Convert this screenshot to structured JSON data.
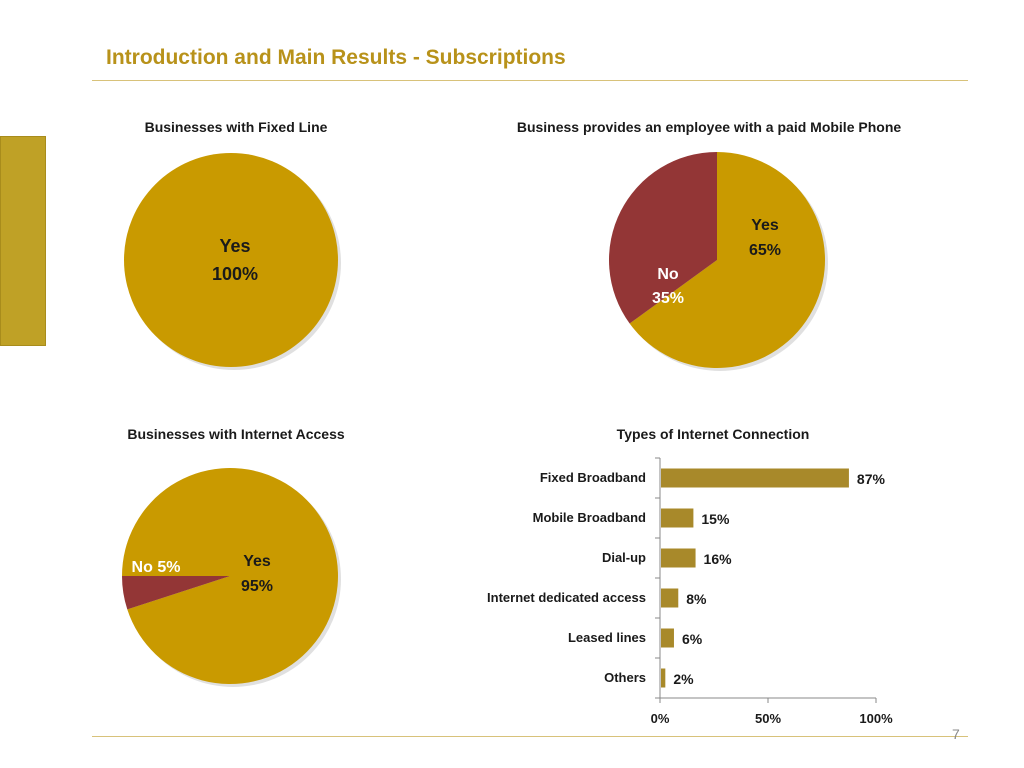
{
  "page": {
    "title": "Introduction and Main Results - Subscriptions",
    "page_number": "7"
  },
  "colors": {
    "title": "#B8921A",
    "pie_gold": "#C99A00",
    "pie_red": "#933636",
    "bar_gold": "#A8892A",
    "side_block": "#BFA126"
  },
  "chart_data": [
    {
      "type": "pie",
      "title": "Businesses with Fixed Line",
      "slices": [
        {
          "label": "Yes",
          "value": 100,
          "display": "100%",
          "color": "#C99A00"
        }
      ]
    },
    {
      "type": "pie",
      "title": "Business provides an employee with a paid Mobile Phone",
      "slices": [
        {
          "label": "Yes",
          "value": 65,
          "display": "65%",
          "color": "#C99A00"
        },
        {
          "label": "No",
          "value": 35,
          "display": "35%",
          "color": "#933636"
        }
      ]
    },
    {
      "type": "pie",
      "title": "Businesses with Internet Access",
      "slices": [
        {
          "label": "Yes",
          "value": 95,
          "display": "95%",
          "color": "#C99A00"
        },
        {
          "label": "No",
          "value": 5,
          "display": "5%",
          "color": "#933636"
        }
      ]
    },
    {
      "type": "bar",
      "orientation": "horizontal",
      "title": "Types of Internet Connection",
      "categories": [
        "Fixed Broadband",
        "Mobile Broadband",
        "Dial-up",
        "Internet dedicated access",
        "Leased lines",
        "Others"
      ],
      "values": [
        87,
        15,
        16,
        8,
        6,
        2
      ],
      "value_labels": [
        "87%",
        "15%",
        "16%",
        "8%",
        "6%",
        "2%"
      ],
      "xlim": [
        0,
        100
      ],
      "xticks": [
        "0%",
        "50%",
        "100%"
      ],
      "color": "#A8892A"
    }
  ]
}
